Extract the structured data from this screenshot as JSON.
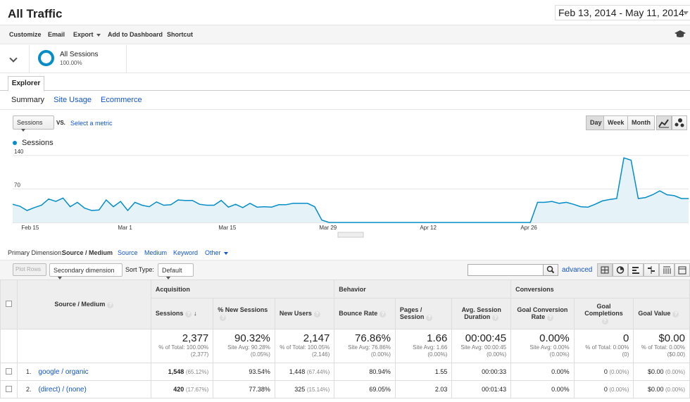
{
  "header": {
    "title": "All Traffic",
    "date_range": "Feb 13, 2014 - May 11, 2014"
  },
  "toolbar": {
    "customize": "Customize",
    "email": "Email",
    "export": "Export",
    "add_to_dashboard": "Add to Dashboard",
    "shortcut": "Shortcut"
  },
  "segment": {
    "name": "All Sessions",
    "percent": "100.00%"
  },
  "tabs": {
    "explorer": "Explorer"
  },
  "subtabs": [
    "Summary",
    "Site Usage",
    "Ecommerce"
  ],
  "chart_controls": {
    "metric": "Sessions",
    "vs": "VS.",
    "select_metric": "Select a metric",
    "periods": [
      "Day",
      "Week",
      "Month"
    ],
    "active_period": "Day"
  },
  "chart_data": {
    "type": "area",
    "series": [
      {
        "name": "Sessions",
        "values": [
          38,
          34,
          25,
          31,
          36,
          49,
          44,
          51,
          33,
          42,
          30,
          25,
          26,
          47,
          33,
          44,
          25,
          42,
          36,
          33,
          43,
          36,
          37,
          47,
          46,
          46,
          38,
          36,
          36,
          46,
          32,
          38,
          31,
          40,
          32,
          33,
          32,
          37,
          37,
          40,
          40,
          40,
          33,
          5,
          0,
          0,
          0,
          0,
          0,
          0,
          0,
          0,
          0,
          0,
          0,
          0,
          0,
          0,
          0,
          0,
          0,
          0,
          0,
          0,
          0,
          0,
          0,
          0,
          0,
          0,
          0,
          0,
          0,
          0,
          0,
          0,
          0,
          0,
          0,
          0,
          0,
          0,
          0,
          0,
          0,
          0,
          0,
          0,
          0,
          0,
          0,
          0,
          0,
          0,
          0,
          0,
          0,
          0,
          0,
          0,
          0,
          0,
          0,
          0,
          0,
          0,
          0,
          0,
          0,
          0,
          0,
          0,
          0,
          0,
          0,
          0,
          0,
          0,
          0,
          0,
          0,
          0,
          0,
          0,
          0,
          0,
          0,
          0,
          0,
          0,
          0,
          0,
          0,
          0,
          0,
          0,
          0,
          0,
          0,
          0,
          0,
          0,
          0,
          0
        ]
      }
    ],
    "points_override": null,
    "y_ticks": [
      "140",
      "70"
    ],
    "ylim": [
      0,
      150
    ],
    "x_ticks": [
      "Feb 15",
      "Mar 1",
      "Mar 15",
      "Mar 29",
      "Apr 12",
      "Apr 26"
    ],
    "legend": "top-left"
  },
  "primary_dimension": {
    "label": "Primary Dimension:",
    "active": "Source / Medium",
    "options": [
      "Source",
      "Medium",
      "Keyword",
      "Other"
    ]
  },
  "table_toolbar": {
    "plot_rows": "Plot Rows",
    "secondary_dimension": "Secondary dimension",
    "sort_type_label": "Sort Type:",
    "sort_type": "Default",
    "advanced": "advanced"
  },
  "table": {
    "groups": [
      "Acquisition",
      "Behavior",
      "Conversions"
    ],
    "dim_header": "Source / Medium",
    "columns": [
      "Sessions",
      "% New Sessions",
      "New Users",
      "Bounce Rate",
      "Pages / Session",
      "Avg. Session Duration",
      "Goal Conversion Rate",
      "Goal Completions",
      "Goal Value"
    ],
    "totals": [
      {
        "value": "2,377",
        "sub1": "% of Total: 100.00%",
        "sub2": "(2,377)"
      },
      {
        "value": "90.32%",
        "sub1": "Site Avg: 90.28%",
        "sub2": "(0.05%)"
      },
      {
        "value": "2,147",
        "sub1": "% of Total: 100.05%",
        "sub2": "(2,146)"
      },
      {
        "value": "76.86%",
        "sub1": "Site Avg: 76.86%",
        "sub2": "(0.00%)"
      },
      {
        "value": "1.66",
        "sub1": "Site Avg: 1.66",
        "sub2": "(0.00%)"
      },
      {
        "value": "00:00:45",
        "sub1": "Site Avg: 00:00:45",
        "sub2": "(0.00%)"
      },
      {
        "value": "0.00%",
        "sub1": "Site Avg: 0.00%",
        "sub2": "(0.00%)"
      },
      {
        "value": "0",
        "sub1": "% of Total: 0.00%",
        "sub2": "(0)"
      },
      {
        "value": "$0.00",
        "sub1": "% of Total: 0.00%",
        "sub2": "($0.00)"
      }
    ],
    "rows": [
      {
        "idx": "1.",
        "name": "google / organic",
        "sessions": "1,548",
        "sessions_pct": "(65.12%)",
        "new_sessions": "93.54%",
        "new_users": "1,448",
        "new_users_pct": "(67.44%)",
        "bounce": "80.94%",
        "pages": "1.55",
        "duration": "00:00:33",
        "conv_rate": "0.00%",
        "completions": "0",
        "completions_pct": "(0.00%)",
        "value": "$0.00",
        "value_pct": "(0.00%)"
      },
      {
        "idx": "2.",
        "name": "(direct) / (none)",
        "sessions": "420",
        "sessions_pct": "(17.67%)",
        "new_sessions": "77.38%",
        "new_users": "325",
        "new_users_pct": "(15.14%)",
        "bounce": "69.05%",
        "pages": "2.03",
        "duration": "00:01:43",
        "conv_rate": "0.00%",
        "completions": "0",
        "completions_pct": "(0.00%)",
        "value": "$0.00",
        "value_pct": "(0.00%)"
      }
    ]
  },
  "colors": {
    "accent": "#058dc7",
    "link": "#1155cc",
    "area_fill": "#e5f3f9"
  }
}
